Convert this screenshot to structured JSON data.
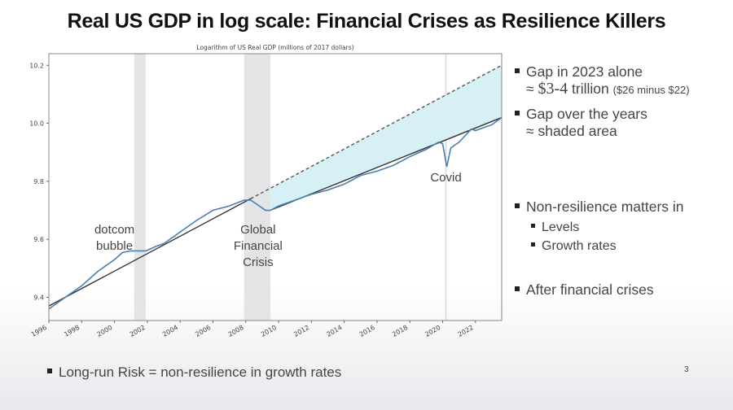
{
  "slide": {
    "title": "Real US GDP in log scale: Financial Crises as Resilience Killers",
    "bullets": [
      {
        "line1": "Gap in 2023 alone",
        "approx": "≈",
        "amount": "$3-4",
        "unit": "trillion",
        "note": "($26 minus $22)"
      },
      {
        "line1": "Gap over the years",
        "line2": "≈ shaded area"
      },
      {
        "line1": "Non-resilience matters in",
        "subs": [
          "Levels",
          "Growth rates"
        ]
      },
      {
        "line1": "After financial crises"
      }
    ],
    "footer": "Long-run Risk = non-resilience in growth rates",
    "page_number": "3"
  },
  "chart_data": {
    "type": "line",
    "title": "Logarithm of US Real GDP (millions of 2017 dollars)",
    "xlim": [
      1996,
      2023.6
    ],
    "ylim": [
      9.32,
      10.24
    ],
    "x_ticks": [
      "1996",
      "1998",
      "2000",
      "2002",
      "2004",
      "2006",
      "2008",
      "2010",
      "2012",
      "2014",
      "2016",
      "2018",
      "2020",
      "2022"
    ],
    "y_ticks": [
      "9.4",
      "9.6",
      "9.8",
      "10.0",
      "10.2"
    ],
    "grid": false,
    "series": [
      {
        "x": [
          1996,
          1997,
          1998,
          1999,
          2000,
          2000.5,
          2001,
          2001.9,
          2002.5,
          2003,
          2004,
          2005,
          2006,
          2007,
          2007.9,
          2008.3,
          2008.7,
          2009.2,
          2009.5,
          2010,
          2011,
          2012,
          2013,
          2014,
          2015,
          2016,
          2017,
          2018,
          2019,
          2019.75,
          2020.0,
          2020.25,
          2020.5,
          2021,
          2021.75,
          2022,
          2023,
          2023.6
        ],
        "y": [
          9.36,
          9.4,
          9.44,
          9.49,
          9.53,
          9.555,
          9.56,
          9.56,
          9.575,
          9.585,
          9.625,
          9.665,
          9.7,
          9.715,
          9.735,
          9.735,
          9.72,
          9.7,
          9.7,
          9.715,
          9.735,
          9.755,
          9.77,
          9.79,
          9.82,
          9.835,
          9.855,
          9.885,
          9.91,
          9.935,
          9.93,
          9.85,
          9.915,
          9.935,
          9.98,
          9.975,
          9.995,
          10.02
        ],
        "color": "#4a7fb0"
      }
    ],
    "trend_lines": [
      {
        "x": [
          1996,
          2008.3
        ],
        "y": [
          9.37,
          9.74
        ],
        "style": "solid",
        "color": "#333333"
      },
      {
        "x": [
          2008.3,
          2023.6
        ],
        "y": [
          9.74,
          10.2
        ],
        "style": "dashed",
        "color": "#555555"
      },
      {
        "x": [
          2009.5,
          2023.6
        ],
        "y": [
          9.7,
          10.02
        ],
        "style": "solid",
        "color": "#333333"
      }
    ],
    "shaded_gap": {
      "x_start": 2009.5,
      "x_end": 2023.6,
      "color": "#d6f0f5"
    },
    "recession_bands": [
      [
        2001.2,
        2001.9
      ],
      [
        2007.9,
        2009.5
      ]
    ],
    "covid_line": 2020.2,
    "annotations": [
      {
        "text": [
          "dotcom",
          "bubble"
        ],
        "x": 2000.0,
        "y": 9.62
      },
      {
        "text": [
          "Global",
          "Financial",
          "Crisis"
        ],
        "x": 2008.75,
        "y": 9.62
      },
      {
        "text": [
          "Covid"
        ],
        "x": 2020.2,
        "y": 9.8
      }
    ]
  }
}
